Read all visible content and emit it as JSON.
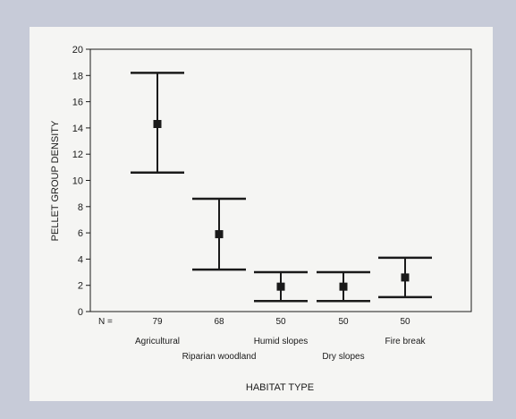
{
  "chart_data": {
    "type": "errorbar",
    "ylabel": "PELLET GROUP DENSITY",
    "xlabel": "HABITAT TYPE",
    "n_label": "N =",
    "ylim": [
      0,
      20
    ],
    "yticks": [
      0,
      2,
      4,
      6,
      8,
      10,
      12,
      14,
      16,
      18,
      20
    ],
    "categories": [
      "Agricultural",
      "Riparian woodland",
      "Humid slopes",
      "Dry slopes",
      "Fire break"
    ],
    "n": [
      "79",
      "68",
      "50",
      "50",
      "50"
    ],
    "mean": [
      14.3,
      5.9,
      1.9,
      1.9,
      2.6
    ],
    "lower": [
      10.6,
      3.2,
      0.8,
      0.8,
      1.1
    ],
    "upper": [
      18.2,
      8.6,
      3.0,
      3.0,
      4.1
    ]
  },
  "colors": {
    "frame": "#c7cbd8",
    "panel": "#f5f5f3",
    "ink": "#1a1a1a"
  }
}
